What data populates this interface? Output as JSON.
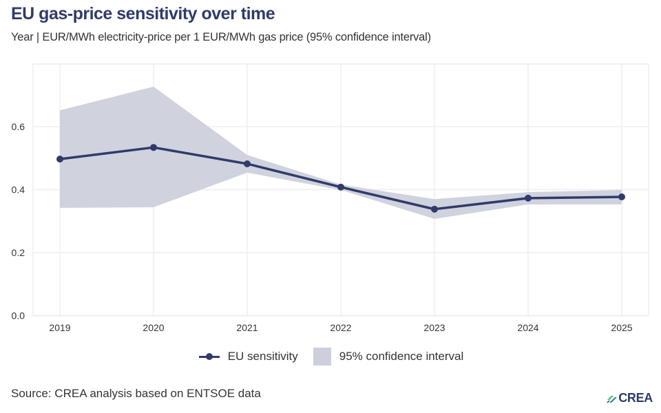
{
  "header": {
    "title": "EU gas-price sensitivity over time",
    "subtitle": "Year | EUR/MWh electricity-price per 1 EUR/MWh gas price (95% confidence interval)"
  },
  "footer": {
    "source": "Source: CREA analysis based on ENTSOE data",
    "logo_text": "CREA"
  },
  "colors": {
    "line": "#2f3b6a",
    "band": "#cdd0dc",
    "grid": "#eeeeee",
    "title": "#2f3b6a",
    "logo_green": "#3bb273",
    "logo_teal": "#1f8f8a"
  },
  "chart_data": {
    "type": "line",
    "title": "EU gas-price sensitivity over time",
    "subtitle": "Year | EUR/MWh electricity-price per 1 EUR/MWh gas price (95% confidence interval)",
    "xlabel": "",
    "ylabel": "",
    "categories": [
      "2019",
      "2020",
      "2021",
      "2022",
      "2023",
      "2024",
      "2025"
    ],
    "series": [
      {
        "name": "EU sensitivity",
        "values": [
          0.497,
          0.534,
          0.482,
          0.408,
          0.338,
          0.373,
          0.377
        ]
      }
    ],
    "confidence_interval": {
      "name": "95% confidence interval",
      "lower": [
        0.342,
        0.344,
        0.454,
        0.399,
        0.307,
        0.353,
        0.353
      ],
      "upper": [
        0.652,
        0.727,
        0.51,
        0.416,
        0.37,
        0.392,
        0.399
      ]
    },
    "yticks": [
      "0.0",
      "0.2",
      "0.4",
      "0.6"
    ],
    "ytick_values": [
      0,
      0.2,
      0.4,
      0.6
    ],
    "ylim": [
      0,
      0.8
    ],
    "grid": true,
    "legend": {
      "position": "bottom",
      "entries": [
        "EU sensitivity",
        "95% confidence interval"
      ]
    }
  }
}
